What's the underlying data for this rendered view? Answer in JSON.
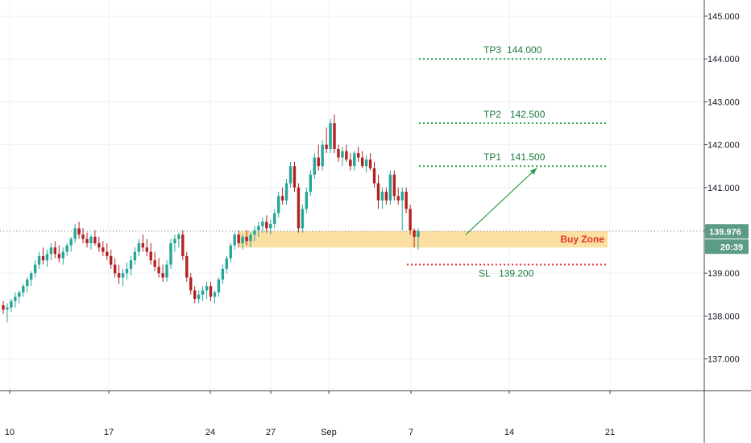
{
  "chart_data": {
    "type": "candlestick",
    "ylim": [
      136.0,
      145.3
    ],
    "y_ticks": [
      "137.000",
      "138.000",
      "139.000",
      "140.000",
      "141.000",
      "142.000",
      "143.000",
      "144.000",
      "145.000"
    ],
    "x_ticks": [
      "10",
      "17",
      "24",
      "27",
      "Sep",
      "7",
      "14",
      "21"
    ],
    "grid": true,
    "current_price": "139.976",
    "countdown": "20:39",
    "levels": [
      {
        "label": "TP3",
        "value": "144.000"
      },
      {
        "label": "TP2",
        "value": "142.500"
      },
      {
        "label": "TP1",
        "value": "141.500"
      },
      {
        "label": "SL",
        "value": "139.200"
      }
    ],
    "zone": {
      "label": "Buy Zone",
      "low": 139.6,
      "high": 139.98
    },
    "arrow": {
      "from": 139.9,
      "to": 141.45
    },
    "colors": {
      "up": "#26a69a",
      "down": "#b22222",
      "grid": "#eef0f3",
      "tp": "#2e9e4a",
      "sl": "#e53935",
      "zone": "#fad88a",
      "tag": "#5d9c84"
    },
    "candles": [
      [
        138.25,
        138.35,
        138.05,
        138.15
      ],
      [
        138.15,
        138.3,
        137.85,
        138.2
      ],
      [
        138.2,
        138.4,
        138.1,
        138.35
      ],
      [
        138.35,
        138.55,
        138.2,
        138.45
      ],
      [
        138.45,
        138.6,
        138.3,
        138.55
      ],
      [
        138.55,
        138.75,
        138.45,
        138.7
      ],
      [
        138.7,
        138.9,
        138.55,
        138.85
      ],
      [
        138.85,
        139.05,
        138.7,
        139.0
      ],
      [
        139.0,
        139.3,
        138.9,
        139.2
      ],
      [
        139.2,
        139.5,
        139.1,
        139.4
      ],
      [
        139.4,
        139.6,
        139.2,
        139.3
      ],
      [
        139.3,
        139.55,
        139.15,
        139.45
      ],
      [
        139.45,
        139.7,
        139.3,
        139.6
      ],
      [
        139.6,
        139.75,
        139.35,
        139.45
      ],
      [
        139.45,
        139.65,
        139.25,
        139.35
      ],
      [
        139.35,
        139.6,
        139.2,
        139.5
      ],
      [
        139.5,
        139.7,
        139.4,
        139.65
      ],
      [
        139.65,
        139.85,
        139.5,
        139.8
      ],
      [
        139.8,
        140.15,
        139.7,
        140.05
      ],
      [
        140.05,
        140.2,
        139.8,
        139.9
      ],
      [
        139.9,
        140.05,
        139.7,
        139.8
      ],
      [
        139.8,
        139.95,
        139.6,
        139.7
      ],
      [
        139.7,
        139.9,
        139.55,
        139.85
      ],
      [
        139.85,
        140.0,
        139.65,
        139.7
      ],
      [
        139.7,
        139.85,
        139.5,
        139.6
      ],
      [
        139.6,
        139.75,
        139.4,
        139.5
      ],
      [
        139.5,
        139.7,
        139.3,
        139.4
      ],
      [
        139.4,
        139.55,
        139.1,
        139.2
      ],
      [
        139.2,
        139.35,
        138.9,
        139.0
      ],
      [
        139.0,
        139.2,
        138.75,
        138.9
      ],
      [
        138.9,
        139.1,
        138.7,
        139.0
      ],
      [
        139.0,
        139.25,
        138.85,
        139.1
      ],
      [
        139.1,
        139.4,
        138.95,
        139.3
      ],
      [
        139.3,
        139.6,
        139.2,
        139.5
      ],
      [
        139.5,
        139.8,
        139.4,
        139.7
      ],
      [
        139.7,
        139.9,
        139.5,
        139.6
      ],
      [
        139.6,
        139.8,
        139.4,
        139.5
      ],
      [
        139.5,
        139.7,
        139.2,
        139.3
      ],
      [
        139.3,
        139.5,
        139.05,
        139.15
      ],
      [
        139.15,
        139.35,
        138.9,
        139.0
      ],
      [
        139.0,
        139.2,
        138.8,
        138.9
      ],
      [
        138.9,
        139.3,
        138.8,
        139.2
      ],
      [
        139.2,
        139.8,
        139.1,
        139.7
      ],
      [
        139.7,
        139.9,
        139.5,
        139.8
      ],
      [
        139.8,
        139.95,
        139.6,
        139.9
      ],
      [
        139.9,
        140.0,
        139.3,
        139.4
      ],
      [
        139.4,
        139.5,
        138.8,
        138.9
      ],
      [
        138.9,
        139.0,
        138.5,
        138.6
      ],
      [
        138.6,
        138.7,
        138.3,
        138.4
      ],
      [
        138.4,
        138.6,
        138.3,
        138.5
      ],
      [
        138.5,
        138.7,
        138.35,
        138.6
      ],
      [
        138.6,
        138.8,
        138.4,
        138.7
      ],
      [
        138.7,
        138.8,
        138.35,
        138.45
      ],
      [
        138.45,
        138.6,
        138.3,
        138.55
      ],
      [
        138.55,
        138.9,
        138.45,
        138.85
      ],
      [
        138.85,
        139.2,
        138.75,
        139.1
      ],
      [
        139.1,
        139.4,
        139.0,
        139.35
      ],
      [
        139.35,
        139.7,
        139.25,
        139.65
      ],
      [
        139.65,
        139.95,
        139.55,
        139.9
      ],
      [
        139.9,
        140.0,
        139.6,
        139.7
      ],
      [
        139.7,
        139.9,
        139.55,
        139.85
      ],
      [
        139.85,
        140.0,
        139.65,
        139.75
      ],
      [
        139.75,
        139.95,
        139.6,
        139.9
      ],
      [
        139.9,
        140.1,
        139.75,
        140.0
      ],
      [
        140.0,
        140.2,
        139.85,
        140.1
      ],
      [
        140.1,
        140.3,
        139.95,
        140.2
      ],
      [
        140.2,
        140.35,
        139.95,
        140.05
      ],
      [
        140.05,
        140.25,
        139.9,
        140.15
      ],
      [
        140.15,
        140.5,
        140.05,
        140.4
      ],
      [
        140.4,
        140.9,
        140.3,
        140.8
      ],
      [
        140.8,
        141.0,
        140.6,
        140.7
      ],
      [
        140.7,
        141.2,
        140.6,
        141.1
      ],
      [
        141.1,
        141.6,
        141.0,
        141.5
      ],
      [
        141.5,
        141.6,
        140.9,
        141.0
      ],
      [
        141.0,
        141.1,
        139.95,
        140.05
      ],
      [
        140.05,
        140.6,
        139.95,
        140.5
      ],
      [
        140.5,
        141.0,
        140.4,
        140.9
      ],
      [
        140.9,
        141.4,
        140.8,
        141.3
      ],
      [
        141.3,
        141.8,
        141.2,
        141.7
      ],
      [
        141.7,
        142.0,
        141.4,
        141.5
      ],
      [
        141.5,
        142.1,
        141.4,
        142.0
      ],
      [
        142.0,
        142.4,
        141.8,
        141.9
      ],
      [
        141.9,
        142.6,
        141.8,
        142.5
      ],
      [
        142.5,
        142.7,
        141.8,
        141.9
      ],
      [
        141.9,
        142.0,
        141.6,
        141.7
      ],
      [
        141.7,
        141.95,
        141.5,
        141.85
      ],
      [
        141.85,
        142.0,
        141.6,
        141.65
      ],
      [
        141.65,
        141.8,
        141.4,
        141.5
      ],
      [
        141.5,
        141.85,
        141.4,
        141.8
      ],
      [
        141.8,
        141.95,
        141.6,
        141.7
      ],
      [
        141.7,
        141.85,
        141.45,
        141.5
      ],
      [
        141.5,
        141.75,
        141.35,
        141.65
      ],
      [
        141.65,
        141.8,
        141.4,
        141.45
      ],
      [
        141.45,
        141.6,
        141.0,
        141.1
      ],
      [
        141.1,
        141.3,
        140.5,
        140.7
      ],
      [
        140.7,
        141.0,
        140.5,
        140.9
      ],
      [
        140.9,
        141.0,
        140.6,
        140.7
      ],
      [
        140.7,
        141.4,
        140.6,
        141.3
      ],
      [
        141.3,
        141.4,
        140.7,
        140.8
      ],
      [
        140.8,
        141.0,
        140.6,
        140.7
      ],
      [
        140.7,
        141.0,
        140.0,
        140.9
      ],
      [
        140.9,
        141.0,
        140.4,
        140.5
      ],
      [
        140.5,
        140.6,
        139.9,
        140.0
      ],
      [
        140.0,
        140.05,
        139.6,
        139.85
      ],
      [
        139.85,
        140.05,
        139.55,
        139.98
      ]
    ]
  }
}
